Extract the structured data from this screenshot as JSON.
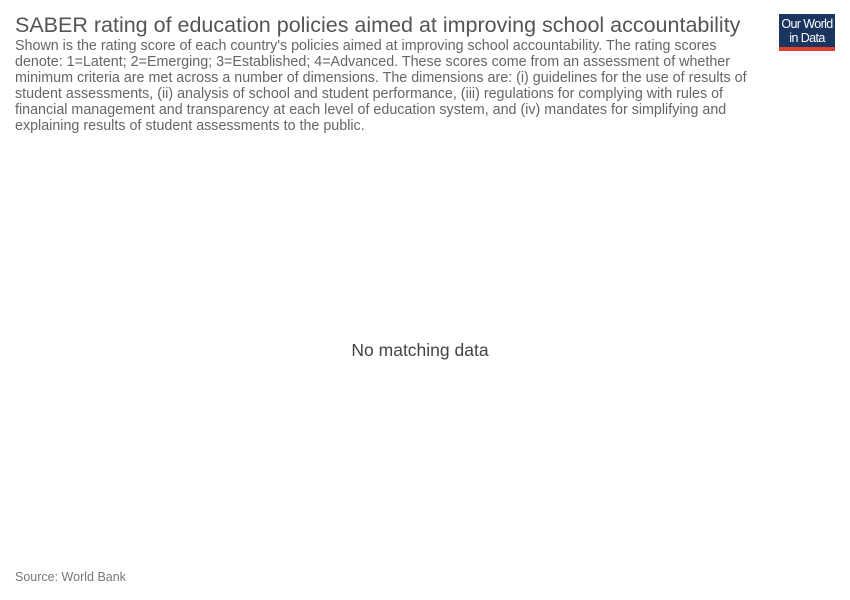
{
  "header": {
    "title": "SABER rating of education policies aimed at improving school accountability",
    "subtitle": "Shown is the rating score of each country's policies aimed at improving school accountability. The rating scores denote: 1=Latent; 2=Emerging; 3=Established; 4=Advanced. These scores come from an assessment of whether minimum criteria are met across a number of dimensions. The dimensions are: (i) guidelines for the use of results of student assessments, (ii) analysis of school and student performance, (iii) regulations for complying with rules of financial management and transparency at each level of education system, and (iv) mandates for simplifying and explaining results of student assessments to the public."
  },
  "logo": {
    "line1": "Our World",
    "line2": "in Data",
    "background_color": "#1a3560",
    "accent_color": "#e0412c"
  },
  "chart_data": {
    "type": "bar",
    "title": "SABER rating of education policies aimed at improving school accountability",
    "categories": [],
    "values": [],
    "message": "No matching data"
  },
  "footer": {
    "source": "Source: World Bank"
  }
}
